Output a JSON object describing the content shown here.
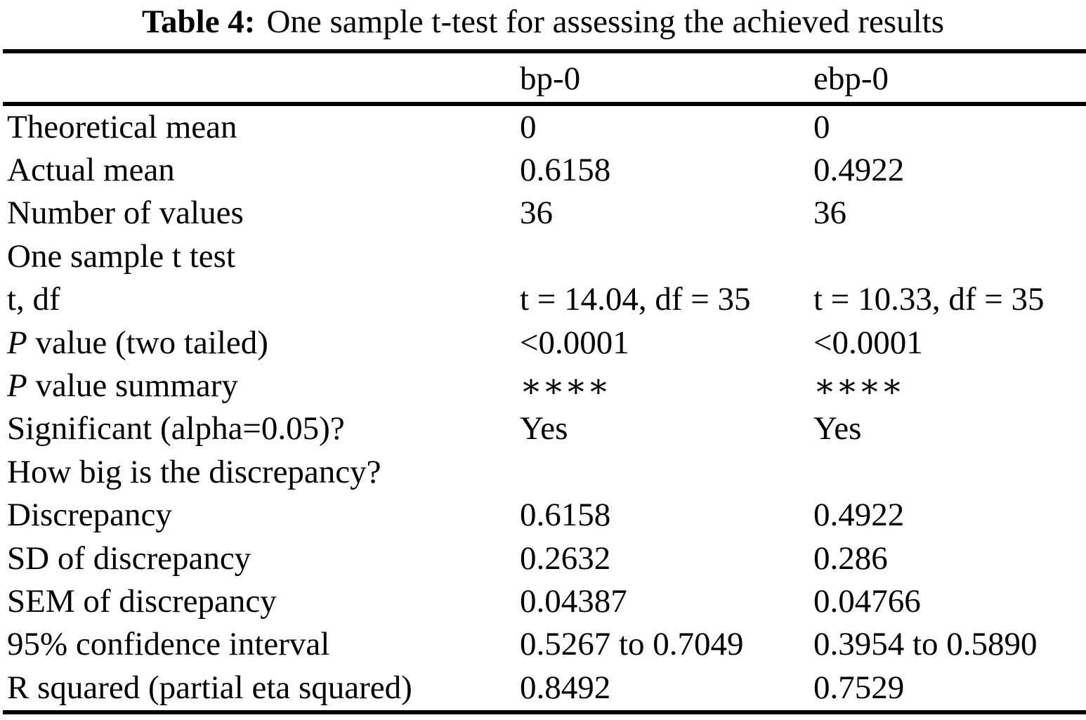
{
  "title": {
    "label": "Table 4:",
    "text": "One sample t-test for assessing the achieved results"
  },
  "table": {
    "header": {
      "bp0": "bp-0",
      "ebp0": "ebp-0"
    },
    "rows": [
      {
        "label": "Theoretical mean",
        "bp0": "0",
        "ebp0": "0"
      },
      {
        "label": "Actual mean",
        "bp0": "0.6158",
        "ebp0": "0.4922"
      },
      {
        "label": "Number of values",
        "bp0": "36",
        "ebp0": "36"
      },
      {
        "label": "One sample t test",
        "bp0": "",
        "ebp0": ""
      },
      {
        "label": "t, df",
        "bp0": "t = 14.04, df = 35",
        "ebp0": "t = 10.33, df = 35"
      },
      {
        "label_italic": "P",
        "label": " value (two tailed)",
        "bp0": "<0.0001",
        "ebp0": "<0.0001"
      },
      {
        "label_italic": "P",
        "label": " value summary",
        "bp0": "∗∗∗∗",
        "ebp0": "∗∗∗∗"
      },
      {
        "label": "Significant (alpha=0.05)?",
        "bp0": "Yes",
        "ebp0": "Yes"
      },
      {
        "label": "How big is the discrepancy?",
        "bp0": "",
        "ebp0": ""
      },
      {
        "label": "Discrepancy",
        "bp0": "0.6158",
        "ebp0": "0.4922"
      },
      {
        "label": "SD of discrepancy",
        "bp0": "0.2632",
        "ebp0": "0.286"
      },
      {
        "label": "SEM of discrepancy",
        "bp0": "0.04387",
        "ebp0": "0.04766"
      },
      {
        "label": "95% confidence interval",
        "bp0": "0.5267 to 0.7049",
        "ebp0": "0.3954 to 0.5890"
      },
      {
        "label": "R squared (partial eta squared)",
        "bp0": "0.8492",
        "ebp0": "0.7529"
      }
    ]
  }
}
